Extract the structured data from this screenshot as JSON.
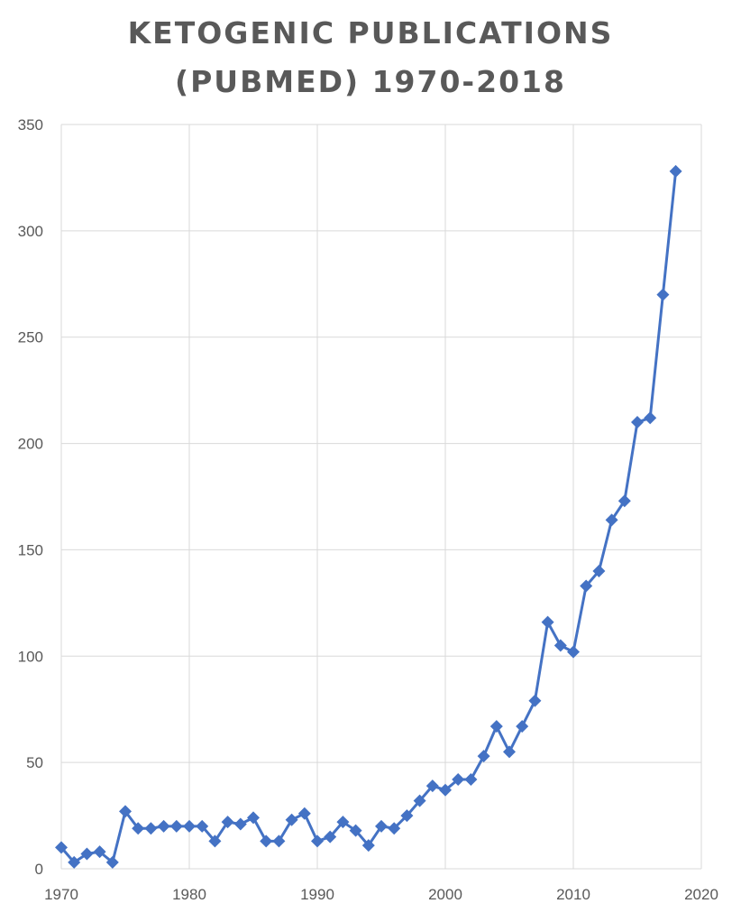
{
  "chart_data": {
    "type": "line",
    "title_lines": [
      "KETOGENIC PUBLICATIONS",
      "(PUBMED) 1970-2018"
    ],
    "xlabel": "",
    "ylabel": "",
    "xlim": [
      1970,
      2020
    ],
    "ylim": [
      0,
      350
    ],
    "x_ticks": [
      1970,
      1980,
      1990,
      2000,
      2010,
      2020
    ],
    "y_ticks": [
      0,
      50,
      100,
      150,
      200,
      250,
      300,
      350
    ],
    "grid": true,
    "legend": "none",
    "marker": "diamond",
    "color": "#4472c4",
    "series": [
      {
        "x": [
          1970,
          1971,
          1972,
          1973,
          1974,
          1975,
          1976,
          1977,
          1978,
          1979,
          1980,
          1981,
          1982,
          1983,
          1984,
          1985,
          1986,
          1987,
          1988,
          1989,
          1990,
          1991,
          1992,
          1993,
          1994,
          1995,
          1996,
          1997,
          1998,
          1999,
          2000,
          2001,
          2002,
          2003,
          2004,
          2005,
          2006,
          2007,
          2008,
          2009,
          2010,
          2011,
          2012,
          2013,
          2014,
          2015,
          2016,
          2017,
          2018
        ],
        "values": [
          10,
          3,
          7,
          8,
          3,
          27,
          19,
          19,
          20,
          20,
          20,
          20,
          13,
          22,
          21,
          24,
          13,
          13,
          23,
          26,
          13,
          15,
          22,
          18,
          11,
          20,
          19,
          25,
          32,
          39,
          37,
          42,
          42,
          53,
          67,
          55,
          67,
          79,
          116,
          105,
          102,
          133,
          140,
          164,
          173,
          210,
          212,
          270,
          328
        ]
      }
    ]
  }
}
